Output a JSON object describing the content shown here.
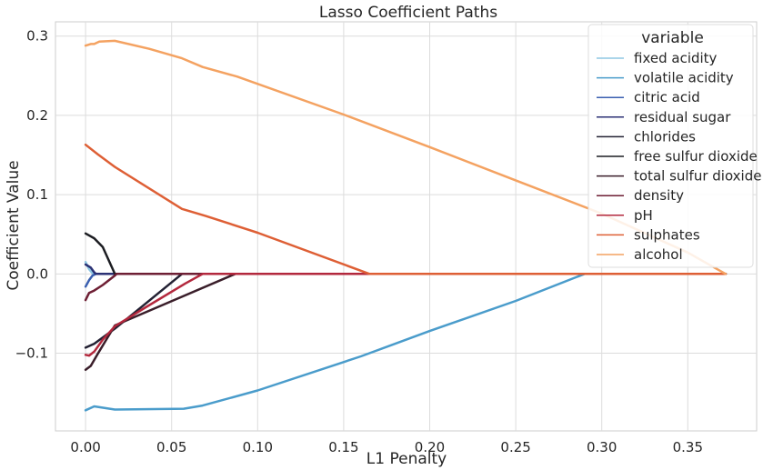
{
  "chart_data": {
    "type": "line",
    "title": "Lasso Coefficient Paths",
    "xlabel": "L1 Penalty",
    "ylabel": "Coefficient Value",
    "xlim": [
      -0.0175,
      0.39
    ],
    "ylim": [
      -0.198,
      0.318
    ],
    "xticks": [
      0.0,
      0.05,
      0.1,
      0.15,
      0.2,
      0.25,
      0.3,
      0.35
    ],
    "xtick_labels": [
      "0.00",
      "0.05",
      "0.10",
      "0.15",
      "0.20",
      "0.25",
      "0.30",
      "0.35"
    ],
    "yticks": [
      -0.1,
      0.0,
      0.1,
      0.2,
      0.3
    ],
    "ytick_labels": [
      "−0.1",
      "0.0",
      "0.1",
      "0.2",
      "0.3"
    ],
    "grid": true,
    "legend": {
      "title": "variable",
      "placement": "top-right"
    },
    "series": [
      {
        "name": "fixed acidity",
        "color": "#8fc7e3",
        "points": [
          [
            0,
            0.015
          ],
          [
            0.002,
            0.006
          ],
          [
            0.004,
            0.001
          ],
          [
            0.005,
            0
          ],
          [
            0.372,
            0
          ]
        ]
      },
      {
        "name": "volatile acidity",
        "color": "#4a9ccb",
        "points": [
          [
            0,
            -0.172
          ],
          [
            0.005,
            -0.167
          ],
          [
            0.017,
            -0.171
          ],
          [
            0.057,
            -0.17
          ],
          [
            0.068,
            -0.166
          ],
          [
            0.1,
            -0.147
          ],
          [
            0.16,
            -0.104
          ],
          [
            0.2,
            -0.072
          ],
          [
            0.25,
            -0.034
          ],
          [
            0.29,
            0
          ],
          [
            0.372,
            0
          ]
        ]
      },
      {
        "name": "citric acid",
        "color": "#3a5fb0",
        "points": [
          [
            0,
            -0.016
          ],
          [
            0.002,
            -0.008
          ],
          [
            0.004,
            -0.002
          ],
          [
            0.006,
            0
          ],
          [
            0.372,
            0
          ]
        ]
      },
      {
        "name": "residual sugar",
        "color": "#2b3174",
        "points": [
          [
            0,
            0.012
          ],
          [
            0.003,
            0.008
          ],
          [
            0.005,
            0.002
          ],
          [
            0.006,
            0
          ],
          [
            0.372,
            0
          ]
        ]
      },
      {
        "name": "chlorides",
        "color": "#232133",
        "points": [
          [
            0,
            -0.093
          ],
          [
            0.005,
            -0.088
          ],
          [
            0.017,
            -0.069
          ],
          [
            0.056,
            0
          ],
          [
            0.372,
            0
          ]
        ]
      },
      {
        "name": "free sulfur dioxide",
        "color": "#1c1d22",
        "points": [
          [
            0,
            0.051
          ],
          [
            0.005,
            0.045
          ],
          [
            0.01,
            0.034
          ],
          [
            0.017,
            0
          ],
          [
            0.372,
            0
          ]
        ]
      },
      {
        "name": "total sulfur dioxide",
        "color": "#3a1e2a",
        "points": [
          [
            0,
            -0.121
          ],
          [
            0.003,
            -0.116
          ],
          [
            0.007,
            -0.101
          ],
          [
            0.017,
            -0.065
          ],
          [
            0.087,
            0
          ],
          [
            0.372,
            0
          ]
        ]
      },
      {
        "name": "density",
        "color": "#6e1f34",
        "points": [
          [
            0,
            -0.033
          ],
          [
            0.002,
            -0.024
          ],
          [
            0.005,
            -0.021
          ],
          [
            0.01,
            -0.014
          ],
          [
            0.017,
            -0.002
          ],
          [
            0.018,
            0
          ],
          [
            0.372,
            0
          ]
        ]
      },
      {
        "name": "pH",
        "color": "#b3283d",
        "points": [
          [
            0,
            -0.102
          ],
          [
            0.002,
            -0.103
          ],
          [
            0.005,
            -0.098
          ],
          [
            0.01,
            -0.083
          ],
          [
            0.017,
            -0.066
          ],
          [
            0.035,
            -0.042
          ],
          [
            0.058,
            -0.012
          ],
          [
            0.068,
            0
          ],
          [
            0.372,
            0
          ]
        ]
      },
      {
        "name": "sulphates",
        "color": "#de5f35",
        "points": [
          [
            0,
            0.163
          ],
          [
            0.007,
            0.151
          ],
          [
            0.017,
            0.135
          ],
          [
            0.056,
            0.082
          ],
          [
            0.07,
            0.073
          ],
          [
            0.1,
            0.052
          ],
          [
            0.165,
            0
          ],
          [
            0.372,
            0
          ]
        ]
      },
      {
        "name": "alcohol",
        "color": "#f4a261",
        "points": [
          [
            0,
            0.288
          ],
          [
            0.003,
            0.29
          ],
          [
            0.005,
            0.29
          ],
          [
            0.008,
            0.293
          ],
          [
            0.017,
            0.294
          ],
          [
            0.037,
            0.284
          ],
          [
            0.056,
            0.272
          ],
          [
            0.068,
            0.261
          ],
          [
            0.088,
            0.249
          ],
          [
            0.15,
            0.201
          ],
          [
            0.2,
            0.16
          ],
          [
            0.25,
            0.118
          ],
          [
            0.3,
            0.076
          ],
          [
            0.35,
            0.027
          ],
          [
            0.372,
            0
          ]
        ]
      }
    ]
  }
}
